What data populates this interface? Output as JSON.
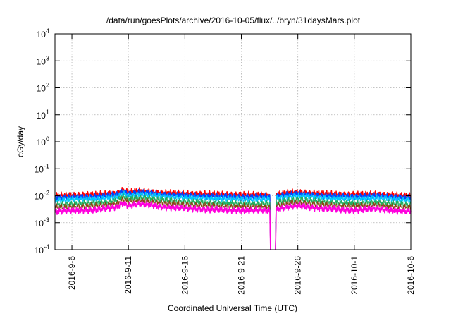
{
  "chart_data": {
    "type": "line",
    "title": "/data/run/goesPlots/archive/2016-10-05/flux/../bryn/31daysMars.plot",
    "xlabel": "Coordinated Universal Time (UTC)",
    "ylabel": "cGy/day",
    "yscale": "log",
    "ylim": [
      0.0001,
      10000
    ],
    "xlim": [
      "2016-09-04T12:00",
      "2016-10-06T00:00"
    ],
    "grid": true,
    "legend": "none",
    "x_ticks": [
      {
        "date": "2016-09-06T00:00",
        "label": "2016-9-6"
      },
      {
        "date": "2016-09-11T00:00",
        "label": "2016-9-11"
      },
      {
        "date": "2016-09-16T00:00",
        "label": "2016-9-16"
      },
      {
        "date": "2016-09-21T00:00",
        "label": "2016-9-21"
      },
      {
        "date": "2016-09-26T00:00",
        "label": "2016-9-26"
      },
      {
        "date": "2016-10-01T00:00",
        "label": "2016-10-1"
      },
      {
        "date": "2016-10-06T00:00",
        "label": "2016-10-6"
      }
    ],
    "y_ticks": [
      {
        "value": 0.0001,
        "base": "10",
        "exp": "-4"
      },
      {
        "value": 0.001,
        "base": "10",
        "exp": "-3"
      },
      {
        "value": 0.01,
        "base": "10",
        "exp": "-2"
      },
      {
        "value": 0.1,
        "base": "10",
        "exp": "-1"
      },
      {
        "value": 1,
        "base": "10",
        "exp": "0"
      },
      {
        "value": 10,
        "base": "10",
        "exp": "1"
      },
      {
        "value": 100,
        "base": "10",
        "exp": "2"
      },
      {
        "value": 1000,
        "base": "10",
        "exp": "3"
      },
      {
        "value": 10000,
        "base": "10",
        "exp": "4"
      }
    ],
    "data_gap": {
      "start": "2016-09-23T13:00",
      "end": "2016-09-24T02:00"
    },
    "series": [
      {
        "color": "#ff0000",
        "width": 1.4,
        "points": [
          [
            "2016-09-04T12:00",
            0.0098
          ],
          [
            "2016-09-06T00:00",
            0.0105
          ],
          [
            "2016-09-07T00:00",
            0.0108
          ],
          [
            "2016-09-08T00:00",
            0.011
          ],
          [
            "2016-09-09T00:00",
            0.0115
          ],
          [
            "2016-09-10T00:00",
            0.0125
          ],
          [
            "2016-09-10T12:00",
            0.0165
          ],
          [
            "2016-09-11T00:00",
            0.0135
          ],
          [
            "2016-09-12T00:00",
            0.0148
          ],
          [
            "2016-09-13T00:00",
            0.014
          ],
          [
            "2016-09-14T00:00",
            0.0128
          ],
          [
            "2016-09-15T00:00",
            0.0124
          ],
          [
            "2016-09-16T00:00",
            0.012
          ],
          [
            "2016-09-17T00:00",
            0.0118
          ],
          [
            "2016-09-18T00:00",
            0.0114
          ],
          [
            "2016-09-19T00:00",
            0.0112
          ],
          [
            "2016-09-20T00:00",
            0.011
          ],
          [
            "2016-09-21T00:00",
            0.0108
          ],
          [
            "2016-09-22T00:00",
            0.0106
          ],
          [
            "2016-09-23T00:00",
            0.0108
          ],
          [
            "2016-09-23T12:00",
            0.0105
          ],
          [
            "2016-09-24T04:00",
            0.0115
          ],
          [
            "2016-09-25T00:00",
            0.0125
          ],
          [
            "2016-09-26T00:00",
            0.0135
          ],
          [
            "2016-09-27T00:00",
            0.0128
          ],
          [
            "2016-09-28T00:00",
            0.012
          ],
          [
            "2016-09-29T00:00",
            0.0115
          ],
          [
            "2016-09-30T00:00",
            0.0112
          ],
          [
            "2016-10-01T00:00",
            0.011
          ],
          [
            "2016-10-02T00:00",
            0.0112
          ],
          [
            "2016-10-03T00:00",
            0.0115
          ],
          [
            "2016-10-04T00:00",
            0.0108
          ],
          [
            "2016-10-05T00:00",
            0.0102
          ],
          [
            "2016-10-06T00:00",
            0.0098
          ]
        ]
      },
      {
        "color": "#0044ff",
        "width": 1.4,
        "points": [
          [
            "2016-09-04T12:00",
            0.0082
          ],
          [
            "2016-09-06T00:00",
            0.0088
          ],
          [
            "2016-09-07T00:00",
            0.009
          ],
          [
            "2016-09-08T00:00",
            0.0093
          ],
          [
            "2016-09-09T00:00",
            0.0098
          ],
          [
            "2016-09-10T00:00",
            0.0108
          ],
          [
            "2016-09-10T12:00",
            0.0145
          ],
          [
            "2016-09-11T00:00",
            0.0118
          ],
          [
            "2016-09-12T00:00",
            0.013
          ],
          [
            "2016-09-13T00:00",
            0.0122
          ],
          [
            "2016-09-14T00:00",
            0.0112
          ],
          [
            "2016-09-15T00:00",
            0.0106
          ],
          [
            "2016-09-16T00:00",
            0.0102
          ],
          [
            "2016-09-17T00:00",
            0.01
          ],
          [
            "2016-09-18T00:00",
            0.0097
          ],
          [
            "2016-09-19T00:00",
            0.0094
          ],
          [
            "2016-09-20T00:00",
            0.0092
          ],
          [
            "2016-09-21T00:00",
            0.009
          ],
          [
            "2016-09-22T00:00",
            0.0088
          ],
          [
            "2016-09-23T00:00",
            0.009
          ],
          [
            "2016-09-23T12:00",
            0.0088
          ],
          [
            "2016-09-24T04:00",
            0.0098
          ],
          [
            "2016-09-25T00:00",
            0.0108
          ],
          [
            "2016-09-26T00:00",
            0.0118
          ],
          [
            "2016-09-27T00:00",
            0.011
          ],
          [
            "2016-09-28T00:00",
            0.0102
          ],
          [
            "2016-09-29T00:00",
            0.0097
          ],
          [
            "2016-09-30T00:00",
            0.0095
          ],
          [
            "2016-10-01T00:00",
            0.0093
          ],
          [
            "2016-10-02T00:00",
            0.0095
          ],
          [
            "2016-10-03T00:00",
            0.0098
          ],
          [
            "2016-10-04T00:00",
            0.0092
          ],
          [
            "2016-10-05T00:00",
            0.0086
          ],
          [
            "2016-10-06T00:00",
            0.0082
          ]
        ]
      },
      {
        "color": "#00c8ff",
        "width": 1.2,
        "points": [
          [
            "2016-09-04T12:00",
            0.0068
          ],
          [
            "2016-09-06T00:00",
            0.0072
          ],
          [
            "2016-09-07T00:00",
            0.0074
          ],
          [
            "2016-09-08T00:00",
            0.0077
          ],
          [
            "2016-09-09T00:00",
            0.0081
          ],
          [
            "2016-09-10T00:00",
            0.009
          ],
          [
            "2016-09-10T12:00",
            0.012
          ],
          [
            "2016-09-11T00:00",
            0.0098
          ],
          [
            "2016-09-12T00:00",
            0.011
          ],
          [
            "2016-09-13T00:00",
            0.0102
          ],
          [
            "2016-09-14T00:00",
            0.0093
          ],
          [
            "2016-09-15T00:00",
            0.0088
          ],
          [
            "2016-09-16T00:00",
            0.0084
          ],
          [
            "2016-09-17T00:00",
            0.0082
          ],
          [
            "2016-09-18T00:00",
            0.0079
          ],
          [
            "2016-09-19T00:00",
            0.0077
          ],
          [
            "2016-09-20T00:00",
            0.0075
          ],
          [
            "2016-09-21T00:00",
            0.0074
          ],
          [
            "2016-09-22T00:00",
            0.0072
          ],
          [
            "2016-09-23T00:00",
            0.0074
          ],
          [
            "2016-09-23T12:00",
            0.0072
          ],
          [
            "2016-09-24T04:00",
            0.0081
          ],
          [
            "2016-09-25T00:00",
            0.009
          ],
          [
            "2016-09-26T00:00",
            0.0098
          ],
          [
            "2016-09-27T00:00",
            0.0091
          ],
          [
            "2016-09-28T00:00",
            0.0084
          ],
          [
            "2016-09-29T00:00",
            0.008
          ],
          [
            "2016-09-30T00:00",
            0.0078
          ],
          [
            "2016-10-01T00:00",
            0.0076
          ],
          [
            "2016-10-02T00:00",
            0.0078
          ],
          [
            "2016-10-03T00:00",
            0.0081
          ],
          [
            "2016-10-04T00:00",
            0.0076
          ],
          [
            "2016-10-05T00:00",
            0.0071
          ],
          [
            "2016-10-06T00:00",
            0.0068
          ]
        ]
      },
      {
        "color": "#20b060",
        "width": 1.2,
        "points": [
          [
            "2016-09-04T12:00",
            0.0046
          ],
          [
            "2016-09-06T00:00",
            0.005
          ],
          [
            "2016-09-07T00:00",
            0.0052
          ],
          [
            "2016-09-08T00:00",
            0.0054
          ],
          [
            "2016-09-09T00:00",
            0.0058
          ],
          [
            "2016-09-10T00:00",
            0.0066
          ],
          [
            "2016-09-10T12:00",
            0.0092
          ],
          [
            "2016-09-11T00:00",
            0.0074
          ],
          [
            "2016-09-12T00:00",
            0.0084
          ],
          [
            "2016-09-13T00:00",
            0.0078
          ],
          [
            "2016-09-14T00:00",
            0.0068
          ],
          [
            "2016-09-15T00:00",
            0.0063
          ],
          [
            "2016-09-16T00:00",
            0.006
          ],
          [
            "2016-09-17T00:00",
            0.0058
          ],
          [
            "2016-09-18T00:00",
            0.0055
          ],
          [
            "2016-09-19T00:00",
            0.0053
          ],
          [
            "2016-09-20T00:00",
            0.0052
          ],
          [
            "2016-09-21T00:00",
            0.0051
          ],
          [
            "2016-09-22T00:00",
            0.005
          ],
          [
            "2016-09-23T00:00",
            0.0051
          ],
          [
            "2016-09-23T12:00",
            0.0049
          ],
          [
            "2016-09-24T04:00",
            0.0056
          ],
          [
            "2016-09-25T00:00",
            0.0064
          ],
          [
            "2016-09-26T00:00",
            0.0072
          ],
          [
            "2016-09-27T00:00",
            0.0066
          ],
          [
            "2016-09-28T00:00",
            0.006
          ],
          [
            "2016-09-29T00:00",
            0.0056
          ],
          [
            "2016-09-30T00:00",
            0.0054
          ],
          [
            "2016-10-01T00:00",
            0.0053
          ],
          [
            "2016-10-02T00:00",
            0.0055
          ],
          [
            "2016-10-03T00:00",
            0.0058
          ],
          [
            "2016-10-04T00:00",
            0.0053
          ],
          [
            "2016-10-05T00:00",
            0.0049
          ],
          [
            "2016-10-06T00:00",
            0.0046
          ]
        ]
      },
      {
        "color": "#8b4513",
        "width": 1.0,
        "points": [
          [
            "2016-09-04T12:00",
            0.0036
          ],
          [
            "2016-09-06T00:00",
            0.0039
          ],
          [
            "2016-09-07T00:00",
            0.004
          ],
          [
            "2016-09-08T00:00",
            0.0042
          ],
          [
            "2016-09-09T00:00",
            0.0045
          ],
          [
            "2016-09-10T00:00",
            0.0052
          ],
          [
            "2016-09-10T12:00",
            0.0072
          ],
          [
            "2016-09-11T00:00",
            0.0058
          ],
          [
            "2016-09-12T00:00",
            0.0066
          ],
          [
            "2016-09-13T00:00",
            0.006
          ],
          [
            "2016-09-14T00:00",
            0.0053
          ],
          [
            "2016-09-15T00:00",
            0.0049
          ],
          [
            "2016-09-16T00:00",
            0.0047
          ],
          [
            "2016-09-17T00:00",
            0.0045
          ],
          [
            "2016-09-18T00:00",
            0.0043
          ],
          [
            "2016-09-19T00:00",
            0.0041
          ],
          [
            "2016-09-20T00:00",
            0.004
          ],
          [
            "2016-09-21T00:00",
            0.004
          ],
          [
            "2016-09-22T00:00",
            0.0039
          ],
          [
            "2016-09-23T00:00",
            0.004
          ],
          [
            "2016-09-23T12:00",
            0.0038
          ],
          [
            "2016-09-24T04:00",
            0.0044
          ],
          [
            "2016-09-25T00:00",
            0.005
          ],
          [
            "2016-09-26T00:00",
            0.0056
          ],
          [
            "2016-09-27T00:00",
            0.0051
          ],
          [
            "2016-09-28T00:00",
            0.0047
          ],
          [
            "2016-09-29T00:00",
            0.0044
          ],
          [
            "2016-09-30T00:00",
            0.0042
          ],
          [
            "2016-10-01T00:00",
            0.0041
          ],
          [
            "2016-10-02T00:00",
            0.0043
          ],
          [
            "2016-10-03T00:00",
            0.0045
          ],
          [
            "2016-10-04T00:00",
            0.0041
          ],
          [
            "2016-10-05T00:00",
            0.0038
          ],
          [
            "2016-10-06T00:00",
            0.0036
          ]
        ]
      },
      {
        "color": "#ff00dd",
        "width": 1.6,
        "points": [
          [
            "2016-09-04T12:00",
            0.0026
          ],
          [
            "2016-09-06T00:00",
            0.0028
          ],
          [
            "2016-09-07T00:00",
            0.0029
          ],
          [
            "2016-09-08T00:00",
            0.003
          ],
          [
            "2016-09-09T00:00",
            0.0033
          ],
          [
            "2016-09-10T00:00",
            0.0038
          ],
          [
            "2016-09-10T12:00",
            0.0055
          ],
          [
            "2016-09-11T00:00",
            0.0043
          ],
          [
            "2016-09-12T00:00",
            0.0049
          ],
          [
            "2016-09-13T00:00",
            0.0045
          ],
          [
            "2016-09-14T00:00",
            0.0039
          ],
          [
            "2016-09-15T00:00",
            0.0036
          ],
          [
            "2016-09-16T00:00",
            0.0034
          ],
          [
            "2016-09-17T00:00",
            0.0033
          ],
          [
            "2016-09-18T00:00",
            0.0031
          ],
          [
            "2016-09-19T00:00",
            0.003
          ],
          [
            "2016-09-20T00:00",
            0.0029
          ],
          [
            "2016-09-21T00:00",
            0.0029
          ],
          [
            "2016-09-22T00:00",
            0.0028
          ],
          [
            "2016-09-23T00:00",
            0.0029
          ],
          [
            "2016-09-23T12:00",
            0.0027
          ],
          [
            "2016-09-24T04:00",
            0.0032
          ],
          [
            "2016-09-25T00:00",
            0.0037
          ],
          [
            "2016-09-26T00:00",
            0.0042
          ],
          [
            "2016-09-27T00:00",
            0.0038
          ],
          [
            "2016-09-28T00:00",
            0.0034
          ],
          [
            "2016-09-29T00:00",
            0.0032
          ],
          [
            "2016-09-30T00:00",
            0.003
          ],
          [
            "2016-10-01T00:00",
            0.0029
          ],
          [
            "2016-10-02T00:00",
            0.0031
          ],
          [
            "2016-10-03T00:00",
            0.0033
          ],
          [
            "2016-10-04T00:00",
            0.003
          ],
          [
            "2016-10-05T00:00",
            0.0027
          ],
          [
            "2016-10-06T00:00",
            0.0026
          ]
        ]
      }
    ]
  }
}
